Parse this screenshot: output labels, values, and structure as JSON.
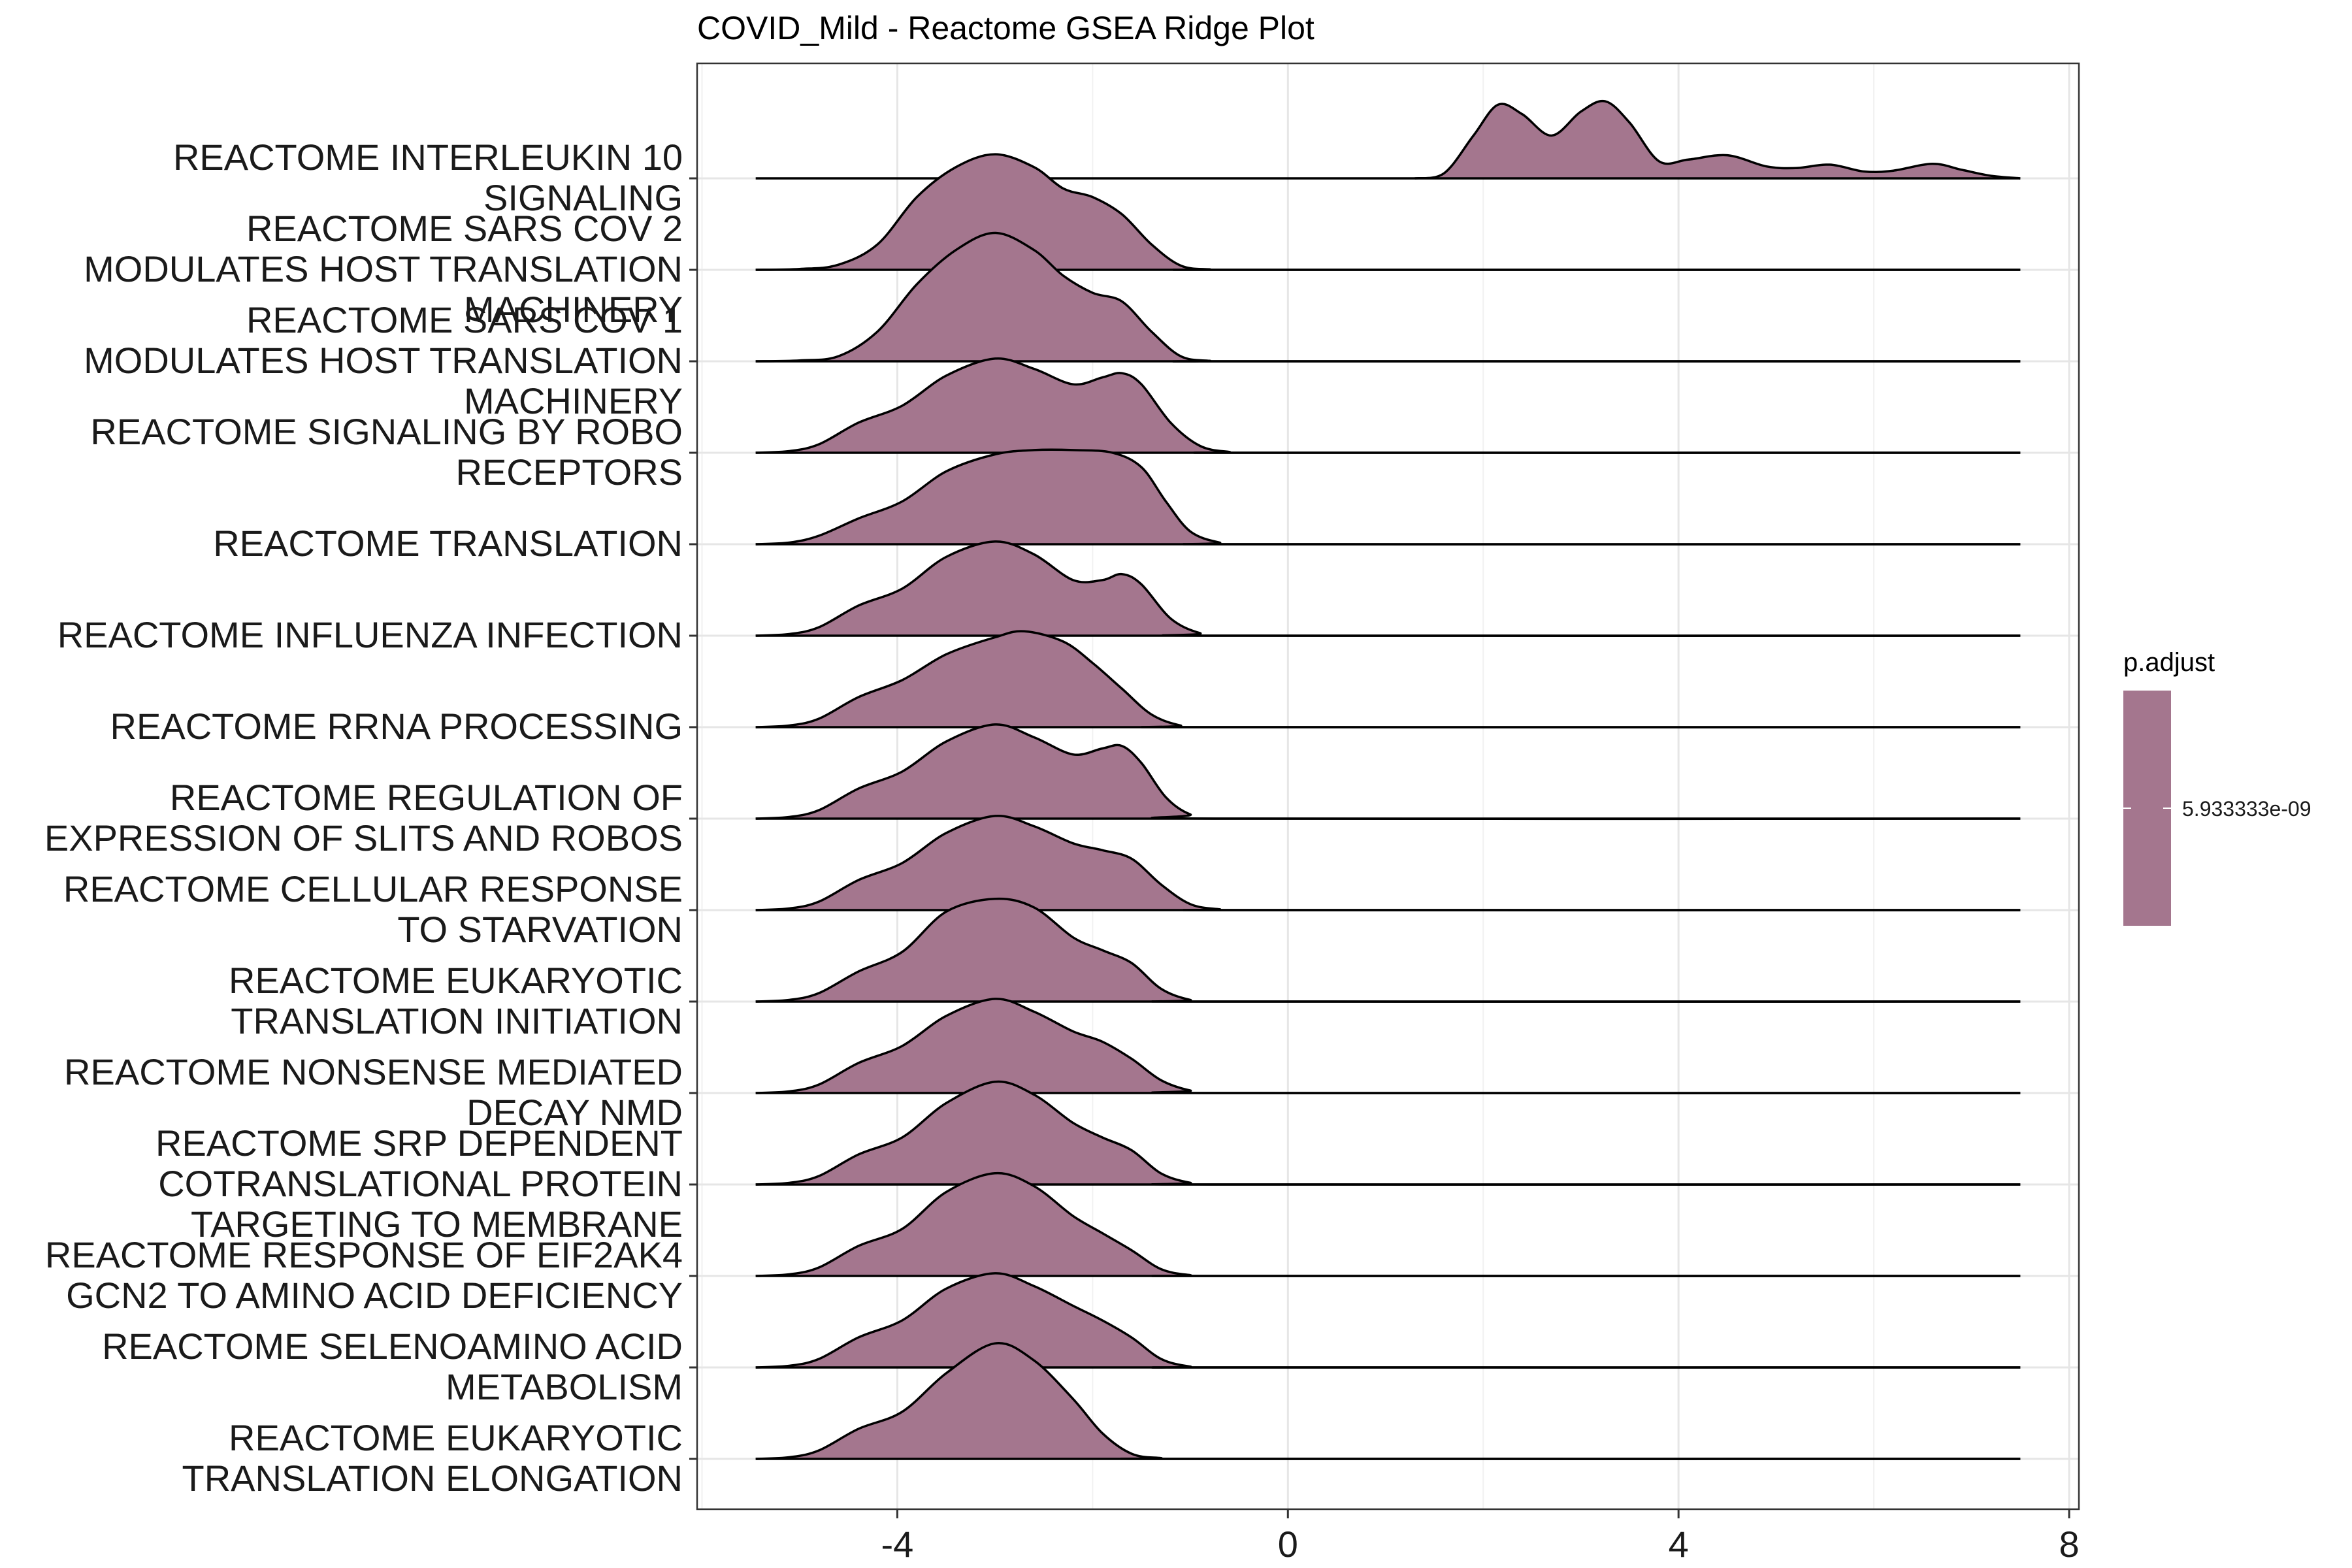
{
  "chart_data": {
    "type": "ridgeline",
    "title": "COVID_Mild - Reactome GSEA Ridge Plot",
    "xlabel": "",
    "ylabel": "",
    "xlim": [
      -6.05,
      8.1
    ],
    "x_ticks": [
      -4,
      0,
      4,
      8
    ],
    "x_tick_labels": [
      "-4",
      "0",
      "4",
      "8"
    ],
    "grid": true,
    "legend": {
      "title": "p.adjust",
      "position": "right",
      "labels": [
        "5.933333e-09"
      ]
    },
    "fill_color": "#a4768e",
    "rows": [
      {
        "label": [
          "REACTOME INTERLEUKIN 10",
          "SIGNALING"
        ],
        "x_range": [
          -5.45,
          7.5
        ],
        "density": [
          [
            1.3,
            0
          ],
          [
            1.6,
            0.06
          ],
          [
            1.9,
            0.5
          ],
          [
            2.15,
            0.86
          ],
          [
            2.4,
            0.75
          ],
          [
            2.7,
            0.5
          ],
          [
            3.0,
            0.78
          ],
          [
            3.25,
            0.9
          ],
          [
            3.5,
            0.65
          ],
          [
            3.8,
            0.2
          ],
          [
            4.1,
            0.22
          ],
          [
            4.5,
            0.27
          ],
          [
            4.9,
            0.14
          ],
          [
            5.2,
            0.12
          ],
          [
            5.55,
            0.16
          ],
          [
            5.9,
            0.08
          ],
          [
            6.2,
            0.09
          ],
          [
            6.6,
            0.17
          ],
          [
            6.9,
            0.1
          ],
          [
            7.2,
            0.03
          ],
          [
            7.5,
            0
          ]
        ]
      },
      {
        "label": [
          "REACTOME SARS COV 2",
          "MODULATES HOST TRANSLATION",
          "MACHINERY"
        ],
        "x_range": [
          -5.45,
          7.5
        ],
        "density": [
          [
            -5.45,
            0
          ],
          [
            -5.0,
            0.01
          ],
          [
            -4.6,
            0.06
          ],
          [
            -4.2,
            0.3
          ],
          [
            -3.8,
            0.85
          ],
          [
            -3.4,
            1.2
          ],
          [
            -3.0,
            1.35
          ],
          [
            -2.6,
            1.2
          ],
          [
            -2.3,
            0.95
          ],
          [
            -2.0,
            0.85
          ],
          [
            -1.7,
            0.65
          ],
          [
            -1.4,
            0.3
          ],
          [
            -1.1,
            0.05
          ],
          [
            -0.8,
            0.005
          ],
          [
            -0.5,
            0
          ],
          [
            7.5,
            0
          ]
        ]
      },
      {
        "label": [
          "REACTOME SARS COV 1",
          "MODULATES HOST TRANSLATION",
          "MACHINERY"
        ],
        "x_range": [
          -5.45,
          7.5
        ],
        "density": [
          [
            -5.45,
            0
          ],
          [
            -5.0,
            0.01
          ],
          [
            -4.6,
            0.06
          ],
          [
            -4.2,
            0.35
          ],
          [
            -3.8,
            0.9
          ],
          [
            -3.4,
            1.3
          ],
          [
            -3.0,
            1.5
          ],
          [
            -2.6,
            1.3
          ],
          [
            -2.3,
            1.0
          ],
          [
            -2.0,
            0.8
          ],
          [
            -1.7,
            0.7
          ],
          [
            -1.4,
            0.35
          ],
          [
            -1.1,
            0.06
          ],
          [
            -0.8,
            0.005
          ],
          [
            -0.5,
            0
          ],
          [
            7.5,
            0
          ]
        ]
      },
      {
        "label": [
          "REACTOME SIGNALING BY ROBO",
          "RECEPTORS"
        ],
        "x_range": [
          -5.45,
          7.5
        ],
        "density": [
          [
            -5.45,
            0
          ],
          [
            -5.1,
            0.02
          ],
          [
            -4.8,
            0.1
          ],
          [
            -4.4,
            0.35
          ],
          [
            -3.95,
            0.55
          ],
          [
            -3.5,
            0.9
          ],
          [
            -3.0,
            1.1
          ],
          [
            -2.6,
            0.98
          ],
          [
            -2.2,
            0.8
          ],
          [
            -1.9,
            0.88
          ],
          [
            -1.7,
            0.93
          ],
          [
            -1.5,
            0.8
          ],
          [
            -1.2,
            0.35
          ],
          [
            -0.9,
            0.08
          ],
          [
            -0.6,
            0.01
          ],
          [
            -0.3,
            0
          ],
          [
            7.5,
            0
          ]
        ]
      },
      {
        "label": [
          "REACTOME TRANSLATION"
        ],
        "x_range": [
          -5.45,
          7.5
        ],
        "density": [
          [
            -5.45,
            0
          ],
          [
            -5.1,
            0.02
          ],
          [
            -4.8,
            0.1
          ],
          [
            -4.4,
            0.3
          ],
          [
            -3.95,
            0.5
          ],
          [
            -3.5,
            0.85
          ],
          [
            -3.0,
            1.05
          ],
          [
            -2.6,
            1.1
          ],
          [
            -2.2,
            1.1
          ],
          [
            -1.8,
            1.07
          ],
          [
            -1.5,
            0.9
          ],
          [
            -1.25,
            0.5
          ],
          [
            -1.0,
            0.15
          ],
          [
            -0.7,
            0.02
          ],
          [
            -0.4,
            0
          ],
          [
            7.5,
            0
          ]
        ]
      },
      {
        "label": [
          "REACTOME INFLUENZA INFECTION"
        ],
        "x_range": [
          -5.45,
          7.5
        ],
        "density": [
          [
            -5.45,
            0
          ],
          [
            -5.1,
            0.02
          ],
          [
            -4.8,
            0.1
          ],
          [
            -4.4,
            0.35
          ],
          [
            -3.95,
            0.55
          ],
          [
            -3.5,
            0.92
          ],
          [
            -3.0,
            1.1
          ],
          [
            -2.6,
            0.95
          ],
          [
            -2.2,
            0.65
          ],
          [
            -1.9,
            0.65
          ],
          [
            -1.7,
            0.72
          ],
          [
            -1.5,
            0.6
          ],
          [
            -1.2,
            0.2
          ],
          [
            -0.9,
            0.03
          ],
          [
            -0.6,
            0
          ],
          [
            7.5,
            0
          ]
        ]
      },
      {
        "label": [
          "REACTOME RRNA PROCESSING"
        ],
        "x_range": [
          -5.45,
          7.5
        ],
        "density": [
          [
            -5.45,
            0
          ],
          [
            -5.1,
            0.02
          ],
          [
            -4.8,
            0.1
          ],
          [
            -4.4,
            0.35
          ],
          [
            -3.95,
            0.55
          ],
          [
            -3.5,
            0.85
          ],
          [
            -3.0,
            1.05
          ],
          [
            -2.7,
            1.12
          ],
          [
            -2.3,
            1.0
          ],
          [
            -2.0,
            0.75
          ],
          [
            -1.7,
            0.45
          ],
          [
            -1.4,
            0.15
          ],
          [
            -1.1,
            0.02
          ],
          [
            -0.8,
            0
          ],
          [
            7.5,
            0
          ]
        ]
      },
      {
        "label": [
          "REACTOME REGULATION OF",
          "EXPRESSION OF SLITS AND ROBOS"
        ],
        "x_range": [
          -5.45,
          7.5
        ],
        "density": [
          [
            -5.45,
            0
          ],
          [
            -5.1,
            0.02
          ],
          [
            -4.8,
            0.1
          ],
          [
            -4.4,
            0.35
          ],
          [
            -3.95,
            0.55
          ],
          [
            -3.5,
            0.9
          ],
          [
            -3.0,
            1.1
          ],
          [
            -2.6,
            0.95
          ],
          [
            -2.2,
            0.75
          ],
          [
            -1.9,
            0.82
          ],
          [
            -1.7,
            0.85
          ],
          [
            -1.5,
            0.65
          ],
          [
            -1.25,
            0.25
          ],
          [
            -1.0,
            0.05
          ],
          [
            -0.7,
            0
          ],
          [
            7.5,
            0
          ]
        ]
      },
      {
        "label": [
          "REACTOME CELLULAR RESPONSE",
          "TO STARVATION"
        ],
        "x_range": [
          -5.45,
          7.5
        ],
        "density": [
          [
            -5.45,
            0
          ],
          [
            -5.1,
            0.02
          ],
          [
            -4.8,
            0.1
          ],
          [
            -4.4,
            0.35
          ],
          [
            -3.95,
            0.55
          ],
          [
            -3.5,
            0.9
          ],
          [
            -3.0,
            1.1
          ],
          [
            -2.6,
            0.98
          ],
          [
            -2.2,
            0.78
          ],
          [
            -1.9,
            0.7
          ],
          [
            -1.6,
            0.6
          ],
          [
            -1.3,
            0.3
          ],
          [
            -1.0,
            0.07
          ],
          [
            -0.7,
            0.01
          ],
          [
            -0.4,
            0
          ],
          [
            7.5,
            0
          ]
        ]
      },
      {
        "label": [
          "REACTOME EUKARYOTIC",
          "TRANSLATION INITIATION"
        ],
        "x_range": [
          -5.45,
          7.5
        ],
        "density": [
          [
            -5.45,
            0
          ],
          [
            -5.1,
            0.02
          ],
          [
            -4.8,
            0.1
          ],
          [
            -4.4,
            0.35
          ],
          [
            -3.95,
            0.58
          ],
          [
            -3.5,
            1.05
          ],
          [
            -3.0,
            1.2
          ],
          [
            -2.6,
            1.1
          ],
          [
            -2.2,
            0.75
          ],
          [
            -1.9,
            0.6
          ],
          [
            -1.6,
            0.45
          ],
          [
            -1.3,
            0.15
          ],
          [
            -1.0,
            0.02
          ],
          [
            -0.7,
            0
          ],
          [
            7.5,
            0
          ]
        ]
      },
      {
        "label": [
          "REACTOME NONSENSE MEDIATED",
          "DECAY NMD"
        ],
        "x_range": [
          -5.45,
          7.5
        ],
        "density": [
          [
            -5.45,
            0
          ],
          [
            -5.1,
            0.02
          ],
          [
            -4.8,
            0.1
          ],
          [
            -4.4,
            0.35
          ],
          [
            -3.95,
            0.55
          ],
          [
            -3.5,
            0.9
          ],
          [
            -3.0,
            1.1
          ],
          [
            -2.6,
            0.95
          ],
          [
            -2.2,
            0.72
          ],
          [
            -1.9,
            0.6
          ],
          [
            -1.6,
            0.4
          ],
          [
            -1.3,
            0.15
          ],
          [
            -1.0,
            0.03
          ],
          [
            -0.7,
            0
          ],
          [
            7.5,
            0
          ]
        ]
      },
      {
        "label": [
          "REACTOME SRP DEPENDENT",
          "COTRANSLATIONAL PROTEIN",
          "TARGETING TO MEMBRANE"
        ],
        "x_range": [
          -5.45,
          7.5
        ],
        "density": [
          [
            -5.45,
            0
          ],
          [
            -5.1,
            0.02
          ],
          [
            -4.8,
            0.1
          ],
          [
            -4.4,
            0.35
          ],
          [
            -3.95,
            0.55
          ],
          [
            -3.5,
            0.95
          ],
          [
            -3.0,
            1.2
          ],
          [
            -2.6,
            1.05
          ],
          [
            -2.2,
            0.72
          ],
          [
            -1.9,
            0.55
          ],
          [
            -1.6,
            0.4
          ],
          [
            -1.3,
            0.13
          ],
          [
            -1.0,
            0.02
          ],
          [
            -0.7,
            0
          ],
          [
            7.5,
            0
          ]
        ]
      },
      {
        "label": [
          "REACTOME RESPONSE OF EIF2AK4",
          "GCN2 TO AMINO ACID DEFICIENCY"
        ],
        "x_range": [
          -5.45,
          7.5
        ],
        "density": [
          [
            -5.45,
            0
          ],
          [
            -5.1,
            0.02
          ],
          [
            -4.8,
            0.1
          ],
          [
            -4.4,
            0.35
          ],
          [
            -3.95,
            0.55
          ],
          [
            -3.5,
            0.98
          ],
          [
            -3.0,
            1.2
          ],
          [
            -2.6,
            1.05
          ],
          [
            -2.2,
            0.7
          ],
          [
            -1.9,
            0.5
          ],
          [
            -1.6,
            0.3
          ],
          [
            -1.3,
            0.08
          ],
          [
            -1.0,
            0.01
          ],
          [
            -0.7,
            0
          ],
          [
            7.5,
            0
          ]
        ]
      },
      {
        "label": [
          "REACTOME SELENOAMINO ACID",
          "METABOLISM"
        ],
        "x_range": [
          -5.45,
          7.5
        ],
        "density": [
          [
            -5.45,
            0
          ],
          [
            -5.1,
            0.02
          ],
          [
            -4.8,
            0.1
          ],
          [
            -4.4,
            0.35
          ],
          [
            -3.95,
            0.55
          ],
          [
            -3.5,
            0.92
          ],
          [
            -3.0,
            1.1
          ],
          [
            -2.6,
            0.95
          ],
          [
            -2.2,
            0.72
          ],
          [
            -1.9,
            0.55
          ],
          [
            -1.6,
            0.35
          ],
          [
            -1.3,
            0.1
          ],
          [
            -1.0,
            0.01
          ],
          [
            -0.7,
            0
          ],
          [
            7.5,
            0
          ]
        ]
      },
      {
        "label": [
          "REACTOME EUKARYOTIC",
          "TRANSLATION ELONGATION"
        ],
        "x_range": [
          -5.45,
          7.5
        ],
        "density": [
          [
            -5.45,
            0
          ],
          [
            -5.1,
            0.02
          ],
          [
            -4.8,
            0.1
          ],
          [
            -4.4,
            0.35
          ],
          [
            -3.95,
            0.55
          ],
          [
            -3.5,
            1.0
          ],
          [
            -3.0,
            1.35
          ],
          [
            -2.6,
            1.15
          ],
          [
            -2.2,
            0.7
          ],
          [
            -1.9,
            0.3
          ],
          [
            -1.6,
            0.06
          ],
          [
            -1.3,
            0.01
          ],
          [
            -1.0,
            0
          ],
          [
            7.5,
            0
          ]
        ]
      }
    ]
  }
}
